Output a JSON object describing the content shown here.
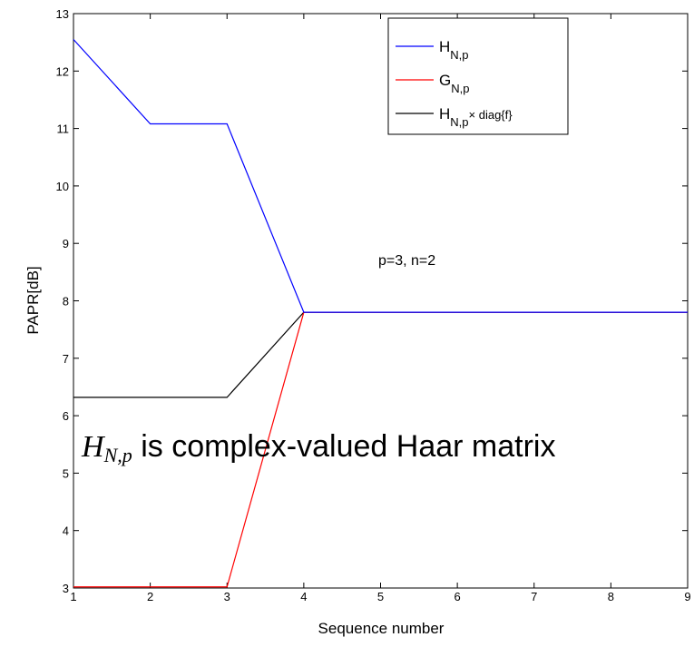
{
  "chart_data": {
    "type": "line",
    "xlabel": "Sequence number",
    "ylabel": "PAPR[dB]",
    "xlim": [
      1,
      9
    ],
    "ylim": [
      3,
      13
    ],
    "xticks": [
      1,
      2,
      3,
      4,
      5,
      6,
      7,
      8,
      9
    ],
    "yticks": [
      3,
      4,
      5,
      6,
      7,
      8,
      9,
      10,
      11,
      12,
      13
    ],
    "grid": false,
    "legend_position": "top-right",
    "series": [
      {
        "legend_main": "H",
        "legend_sub": "N,p",
        "legend_suffix": "",
        "color": "#0000ff",
        "x": [
          1,
          2,
          3,
          4,
          5,
          6,
          7,
          8,
          9
        ],
        "y": [
          12.55,
          11.08,
          11.08,
          7.8,
          7.8,
          7.8,
          7.8,
          7.8,
          7.8
        ]
      },
      {
        "legend_main": "G",
        "legend_sub": "N,p",
        "legend_suffix": "",
        "color": "#ff0000",
        "x": [
          1,
          2,
          3,
          4,
          5,
          6,
          7,
          8,
          9
        ],
        "y": [
          3.02,
          3.02,
          3.02,
          7.8,
          7.8,
          7.8,
          7.8,
          7.8,
          7.8
        ]
      },
      {
        "legend_main": "H",
        "legend_sub": "N,p",
        "legend_suffix": "× diag{f}",
        "color": "#000000",
        "x": [
          1,
          2,
          3,
          4,
          5,
          6,
          7,
          8,
          9
        ],
        "y": [
          6.32,
          6.32,
          6.32,
          7.8,
          7.8,
          7.8,
          7.8,
          7.8,
          7.8
        ]
      }
    ],
    "annotations": {
      "params": "p=3, n=2",
      "note_symbol": "HN,p",
      "note_text": " is complex-valued Haar matrix"
    }
  }
}
